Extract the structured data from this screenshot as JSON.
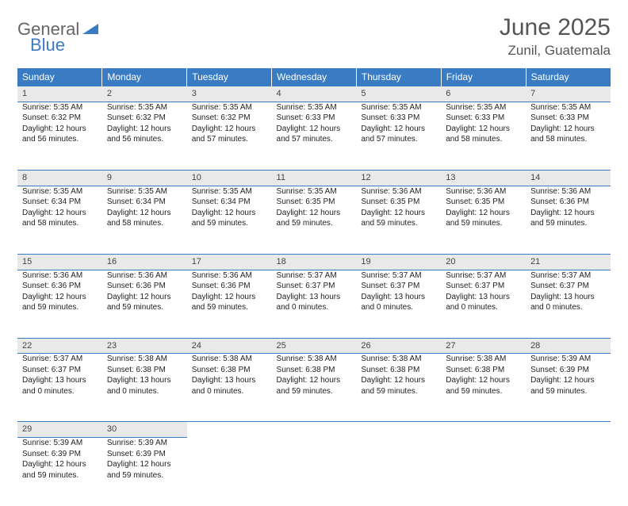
{
  "logo": {
    "part1": "General",
    "part2": "Blue"
  },
  "title": "June 2025",
  "location": "Zunil, Guatemala",
  "colors": {
    "header_bg": "#3a7cc4",
    "daynum_bg": "#e9e9e9",
    "border": "#3a7cc4",
    "logo_gray": "#666666",
    "logo_blue": "#3a7cc4",
    "text": "#222222",
    "title_gray": "#555555"
  },
  "typography": {
    "title_fontsize": 30,
    "location_fontsize": 17,
    "header_fontsize": 12,
    "cell_fontsize": 10
  },
  "weekdays": [
    "Sunday",
    "Monday",
    "Tuesday",
    "Wednesday",
    "Thursday",
    "Friday",
    "Saturday"
  ],
  "weeks": [
    [
      {
        "n": "1",
        "sr": "Sunrise: 5:35 AM",
        "ss": "Sunset: 6:32 PM",
        "d1": "Daylight: 12 hours",
        "d2": "and 56 minutes."
      },
      {
        "n": "2",
        "sr": "Sunrise: 5:35 AM",
        "ss": "Sunset: 6:32 PM",
        "d1": "Daylight: 12 hours",
        "d2": "and 56 minutes."
      },
      {
        "n": "3",
        "sr": "Sunrise: 5:35 AM",
        "ss": "Sunset: 6:32 PM",
        "d1": "Daylight: 12 hours",
        "d2": "and 57 minutes."
      },
      {
        "n": "4",
        "sr": "Sunrise: 5:35 AM",
        "ss": "Sunset: 6:33 PM",
        "d1": "Daylight: 12 hours",
        "d2": "and 57 minutes."
      },
      {
        "n": "5",
        "sr": "Sunrise: 5:35 AM",
        "ss": "Sunset: 6:33 PM",
        "d1": "Daylight: 12 hours",
        "d2": "and 57 minutes."
      },
      {
        "n": "6",
        "sr": "Sunrise: 5:35 AM",
        "ss": "Sunset: 6:33 PM",
        "d1": "Daylight: 12 hours",
        "d2": "and 58 minutes."
      },
      {
        "n": "7",
        "sr": "Sunrise: 5:35 AM",
        "ss": "Sunset: 6:33 PM",
        "d1": "Daylight: 12 hours",
        "d2": "and 58 minutes."
      }
    ],
    [
      {
        "n": "8",
        "sr": "Sunrise: 5:35 AM",
        "ss": "Sunset: 6:34 PM",
        "d1": "Daylight: 12 hours",
        "d2": "and 58 minutes."
      },
      {
        "n": "9",
        "sr": "Sunrise: 5:35 AM",
        "ss": "Sunset: 6:34 PM",
        "d1": "Daylight: 12 hours",
        "d2": "and 58 minutes."
      },
      {
        "n": "10",
        "sr": "Sunrise: 5:35 AM",
        "ss": "Sunset: 6:34 PM",
        "d1": "Daylight: 12 hours",
        "d2": "and 59 minutes."
      },
      {
        "n": "11",
        "sr": "Sunrise: 5:35 AM",
        "ss": "Sunset: 6:35 PM",
        "d1": "Daylight: 12 hours",
        "d2": "and 59 minutes."
      },
      {
        "n": "12",
        "sr": "Sunrise: 5:36 AM",
        "ss": "Sunset: 6:35 PM",
        "d1": "Daylight: 12 hours",
        "d2": "and 59 minutes."
      },
      {
        "n": "13",
        "sr": "Sunrise: 5:36 AM",
        "ss": "Sunset: 6:35 PM",
        "d1": "Daylight: 12 hours",
        "d2": "and 59 minutes."
      },
      {
        "n": "14",
        "sr": "Sunrise: 5:36 AM",
        "ss": "Sunset: 6:36 PM",
        "d1": "Daylight: 12 hours",
        "d2": "and 59 minutes."
      }
    ],
    [
      {
        "n": "15",
        "sr": "Sunrise: 5:36 AM",
        "ss": "Sunset: 6:36 PM",
        "d1": "Daylight: 12 hours",
        "d2": "and 59 minutes."
      },
      {
        "n": "16",
        "sr": "Sunrise: 5:36 AM",
        "ss": "Sunset: 6:36 PM",
        "d1": "Daylight: 12 hours",
        "d2": "and 59 minutes."
      },
      {
        "n": "17",
        "sr": "Sunrise: 5:36 AM",
        "ss": "Sunset: 6:36 PM",
        "d1": "Daylight: 12 hours",
        "d2": "and 59 minutes."
      },
      {
        "n": "18",
        "sr": "Sunrise: 5:37 AM",
        "ss": "Sunset: 6:37 PM",
        "d1": "Daylight: 13 hours",
        "d2": "and 0 minutes."
      },
      {
        "n": "19",
        "sr": "Sunrise: 5:37 AM",
        "ss": "Sunset: 6:37 PM",
        "d1": "Daylight: 13 hours",
        "d2": "and 0 minutes."
      },
      {
        "n": "20",
        "sr": "Sunrise: 5:37 AM",
        "ss": "Sunset: 6:37 PM",
        "d1": "Daylight: 13 hours",
        "d2": "and 0 minutes."
      },
      {
        "n": "21",
        "sr": "Sunrise: 5:37 AM",
        "ss": "Sunset: 6:37 PM",
        "d1": "Daylight: 13 hours",
        "d2": "and 0 minutes."
      }
    ],
    [
      {
        "n": "22",
        "sr": "Sunrise: 5:37 AM",
        "ss": "Sunset: 6:37 PM",
        "d1": "Daylight: 13 hours",
        "d2": "and 0 minutes."
      },
      {
        "n": "23",
        "sr": "Sunrise: 5:38 AM",
        "ss": "Sunset: 6:38 PM",
        "d1": "Daylight: 13 hours",
        "d2": "and 0 minutes."
      },
      {
        "n": "24",
        "sr": "Sunrise: 5:38 AM",
        "ss": "Sunset: 6:38 PM",
        "d1": "Daylight: 13 hours",
        "d2": "and 0 minutes."
      },
      {
        "n": "25",
        "sr": "Sunrise: 5:38 AM",
        "ss": "Sunset: 6:38 PM",
        "d1": "Daylight: 12 hours",
        "d2": "and 59 minutes."
      },
      {
        "n": "26",
        "sr": "Sunrise: 5:38 AM",
        "ss": "Sunset: 6:38 PM",
        "d1": "Daylight: 12 hours",
        "d2": "and 59 minutes."
      },
      {
        "n": "27",
        "sr": "Sunrise: 5:38 AM",
        "ss": "Sunset: 6:38 PM",
        "d1": "Daylight: 12 hours",
        "d2": "and 59 minutes."
      },
      {
        "n": "28",
        "sr": "Sunrise: 5:39 AM",
        "ss": "Sunset: 6:39 PM",
        "d1": "Daylight: 12 hours",
        "d2": "and 59 minutes."
      }
    ],
    [
      {
        "n": "29",
        "sr": "Sunrise: 5:39 AM",
        "ss": "Sunset: 6:39 PM",
        "d1": "Daylight: 12 hours",
        "d2": "and 59 minutes."
      },
      {
        "n": "30",
        "sr": "Sunrise: 5:39 AM",
        "ss": "Sunset: 6:39 PM",
        "d1": "Daylight: 12 hours",
        "d2": "and 59 minutes."
      },
      null,
      null,
      null,
      null,
      null
    ]
  ]
}
